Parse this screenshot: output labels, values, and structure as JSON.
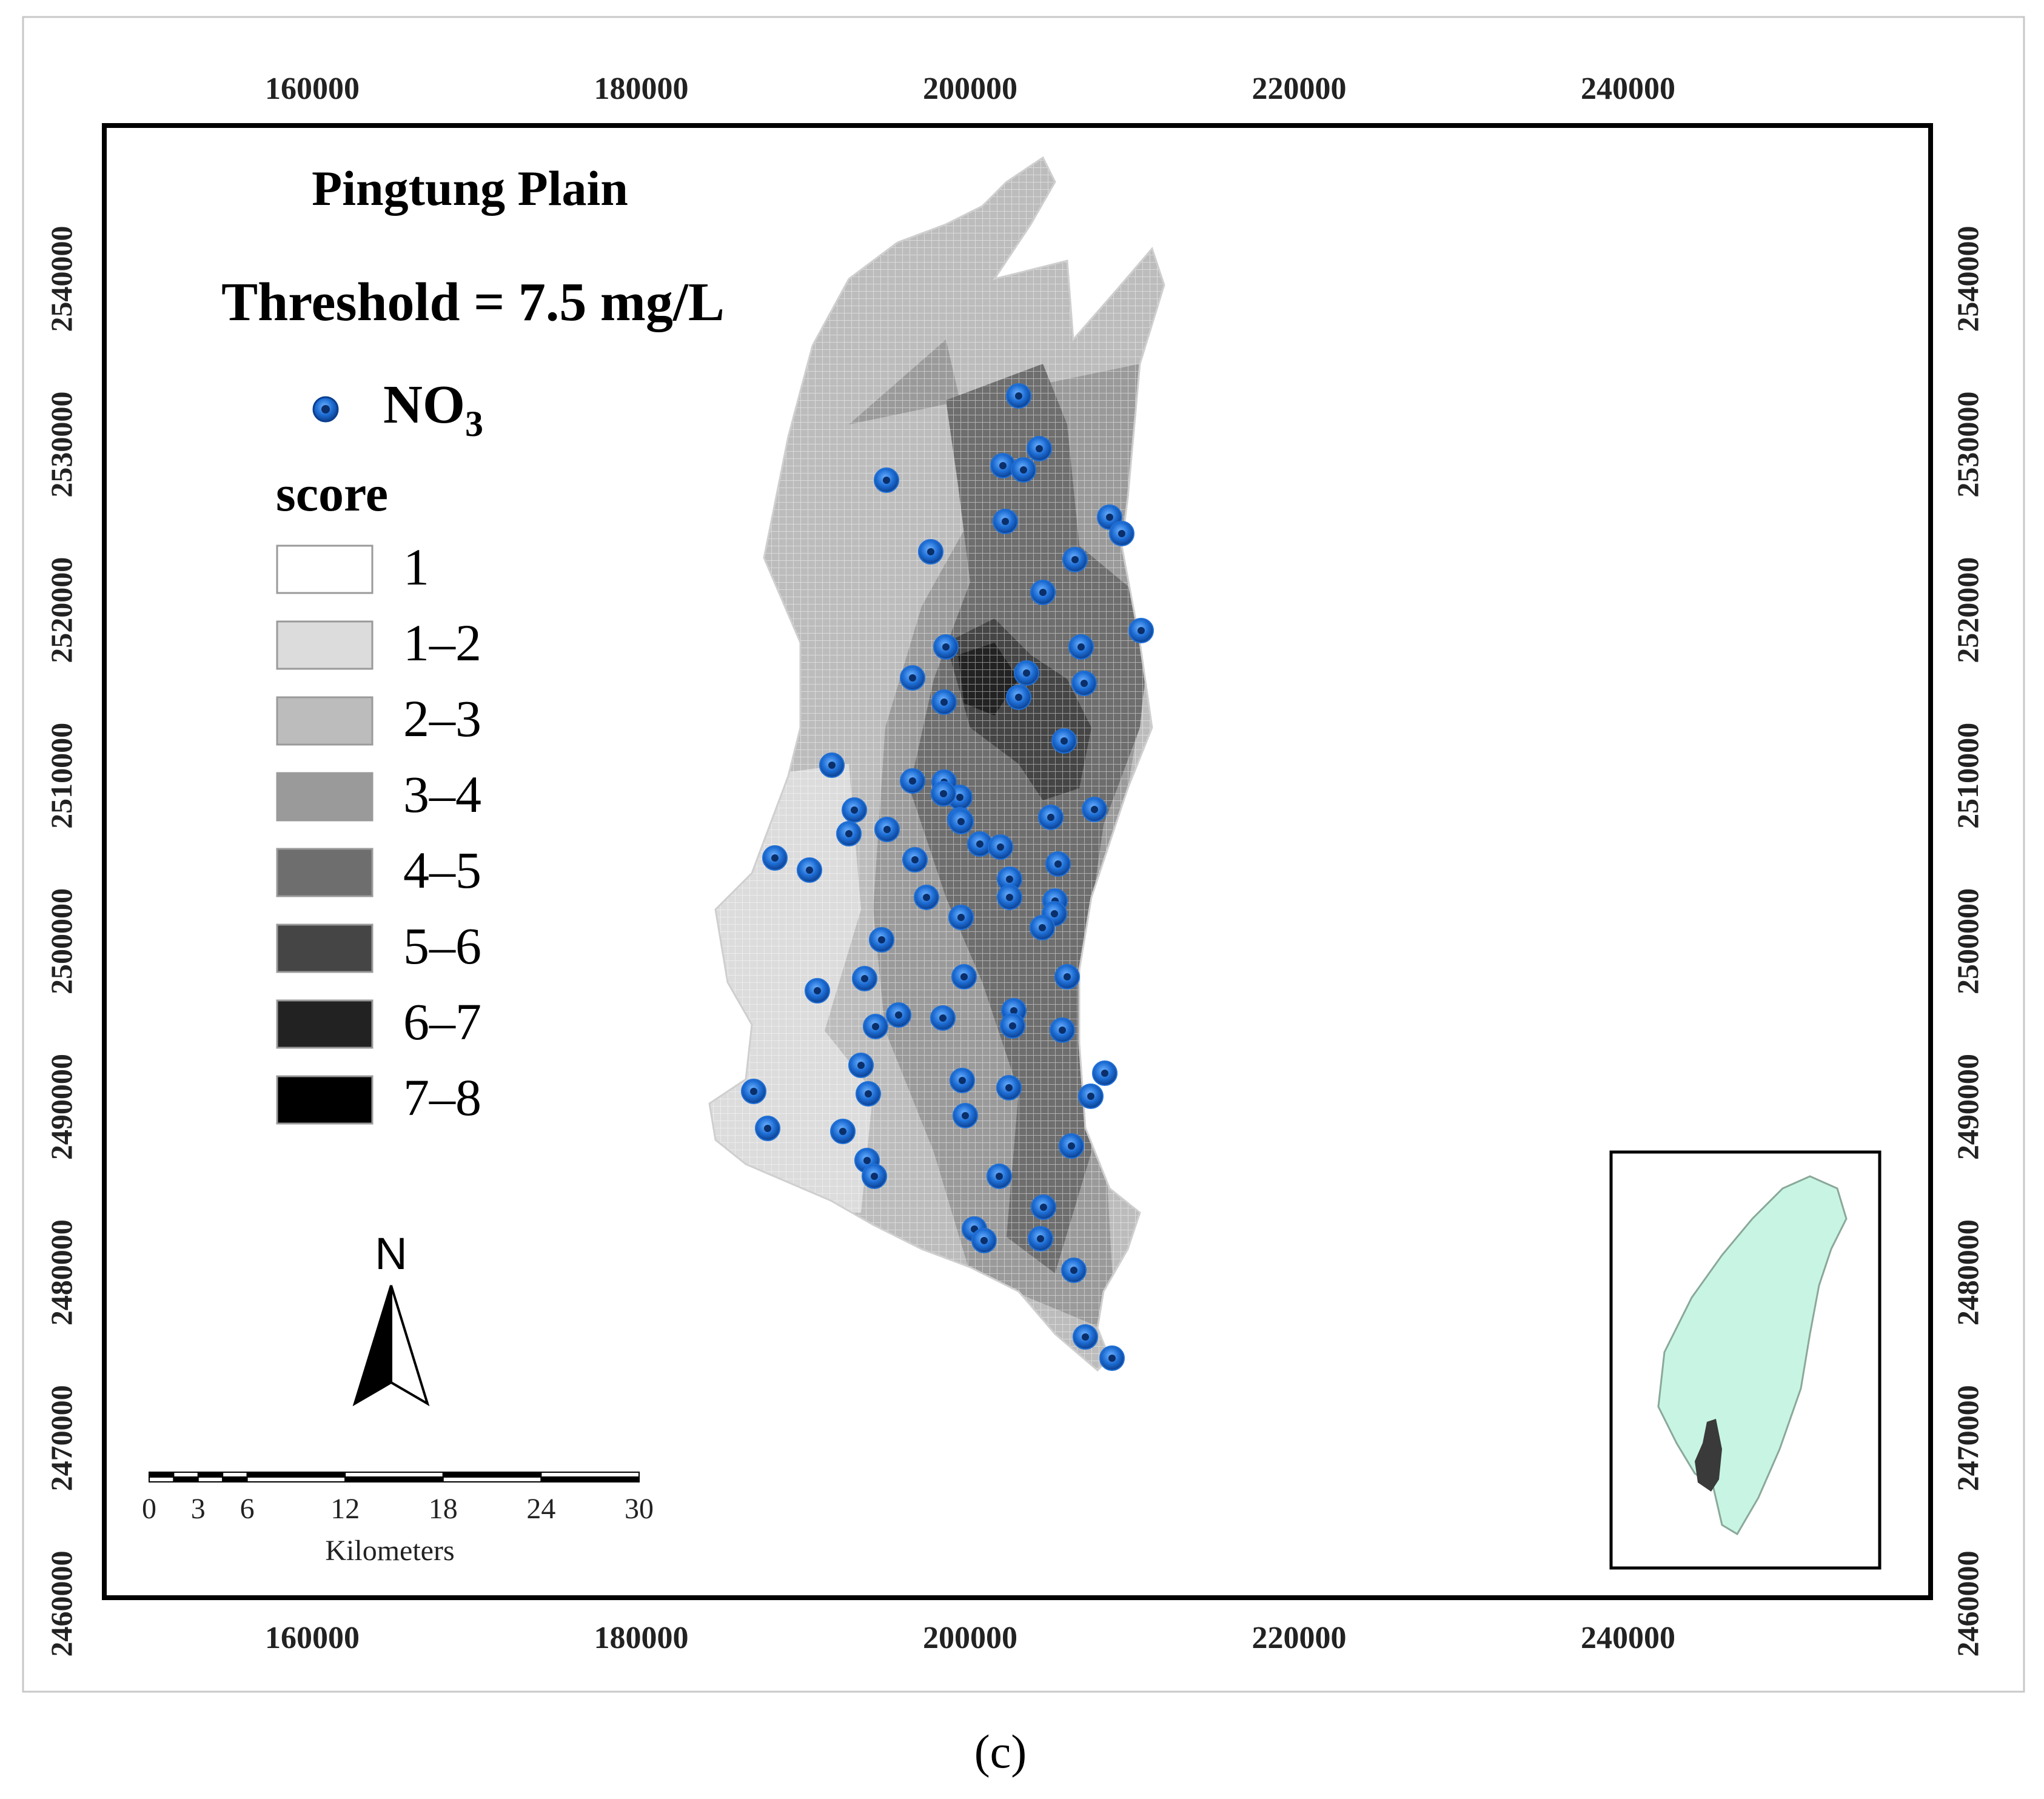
{
  "map": {
    "title": "Pingtung Plain",
    "threshold": "Threshold = 7.5 mg/L",
    "panel_label": "(c)",
    "point_legend": {
      "label": "NO",
      "subscript": "3"
    },
    "score_legend": {
      "title": "score",
      "classes": [
        {
          "label": "1",
          "color": "#ffffff"
        },
        {
          "label": "1–2",
          "color": "#dcdcdc"
        },
        {
          "label": "2–3",
          "color": "#bcbcbc"
        },
        {
          "label": "3–4",
          "color": "#9a9a9a"
        },
        {
          "label": "4–5",
          "color": "#6e6e6e"
        },
        {
          "label": "5–6",
          "color": "#454545"
        },
        {
          "label": "6–7",
          "color": "#222222"
        },
        {
          "label": "7–8",
          "color": "#000000"
        }
      ]
    },
    "x_ticks": [
      "160000",
      "180000",
      "200000",
      "220000",
      "240000"
    ],
    "y_ticks": [
      "2540000",
      "2530000",
      "2520000",
      "2510000",
      "2500000",
      "2490000",
      "2480000",
      "2470000",
      "2460000"
    ],
    "north_arrow": "N",
    "scalebar": {
      "ticks": [
        "0",
        "3",
        "6",
        "12",
        "18",
        "24",
        "30"
      ],
      "unit": "Kilometers"
    },
    "colors": {
      "well": "#1f6fd6",
      "inset_land": "#c8f5e3"
    }
  }
}
